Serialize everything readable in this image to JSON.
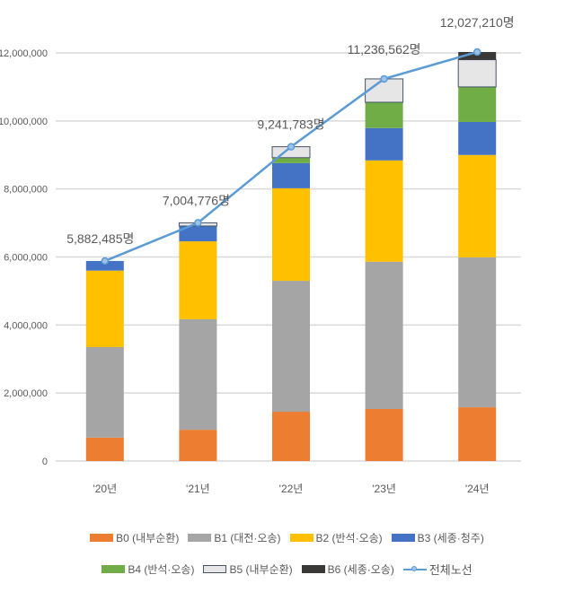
{
  "chart_data": {
    "type": "bar",
    "stacked": true,
    "categories": [
      "'20년",
      "'21년",
      "'22년",
      "'23년",
      "'24년"
    ],
    "ylim": [
      0,
      12000000
    ],
    "yticks": [
      0,
      2000000,
      4000000,
      6000000,
      8000000,
      10000000,
      12000000
    ],
    "ytick_labels": [
      "0",
      "2,000,000",
      "4,000,000",
      "6,000,000",
      "8,000,000",
      "10,000,000",
      "12,000,000"
    ],
    "grid": true,
    "legend_position": "bottom",
    "series": [
      {
        "name": "B0 (내부순환)",
        "color": "#ed7d31",
        "values": [
          690000,
          920000,
          1450000,
          1530000,
          1580000
        ]
      },
      {
        "name": "B1 (대전·오송)",
        "color": "#a5a5a5",
        "values": [
          2660000,
          3250000,
          3850000,
          4330000,
          4410000
        ]
      },
      {
        "name": "B2 (반석·오송)",
        "color": "#ffc000",
        "values": [
          2250000,
          2290000,
          2720000,
          2980000,
          3010000
        ]
      },
      {
        "name": "B3 (세종·청주)",
        "color": "#4472c4",
        "values": [
          282485,
          450000,
          740000,
          950000,
          970000
        ]
      },
      {
        "name": "B4 (반석·오송)",
        "color": "#70ad47",
        "values": [
          0,
          0,
          160000,
          760000,
          1030000
        ]
      },
      {
        "name": "B5 (내부순환)",
        "color": "#e7e6e6",
        "border": "#44546a",
        "values": [
          0,
          94776,
          321783,
          686562,
          800000
        ]
      },
      {
        "name": "B6 (세종·오송)",
        "color": "#3b3838",
        "values": [
          0,
          0,
          0,
          0,
          227210
        ]
      }
    ],
    "line": {
      "name": "전체노선",
      "color": "#5b9bd5",
      "values": [
        5882485,
        7004776,
        9241783,
        11236562,
        12027210
      ],
      "labels": [
        "5,882,485명",
        "7,004,776명",
        "9,241,783명",
        "11,236,562명",
        "12,027,210명"
      ]
    }
  }
}
